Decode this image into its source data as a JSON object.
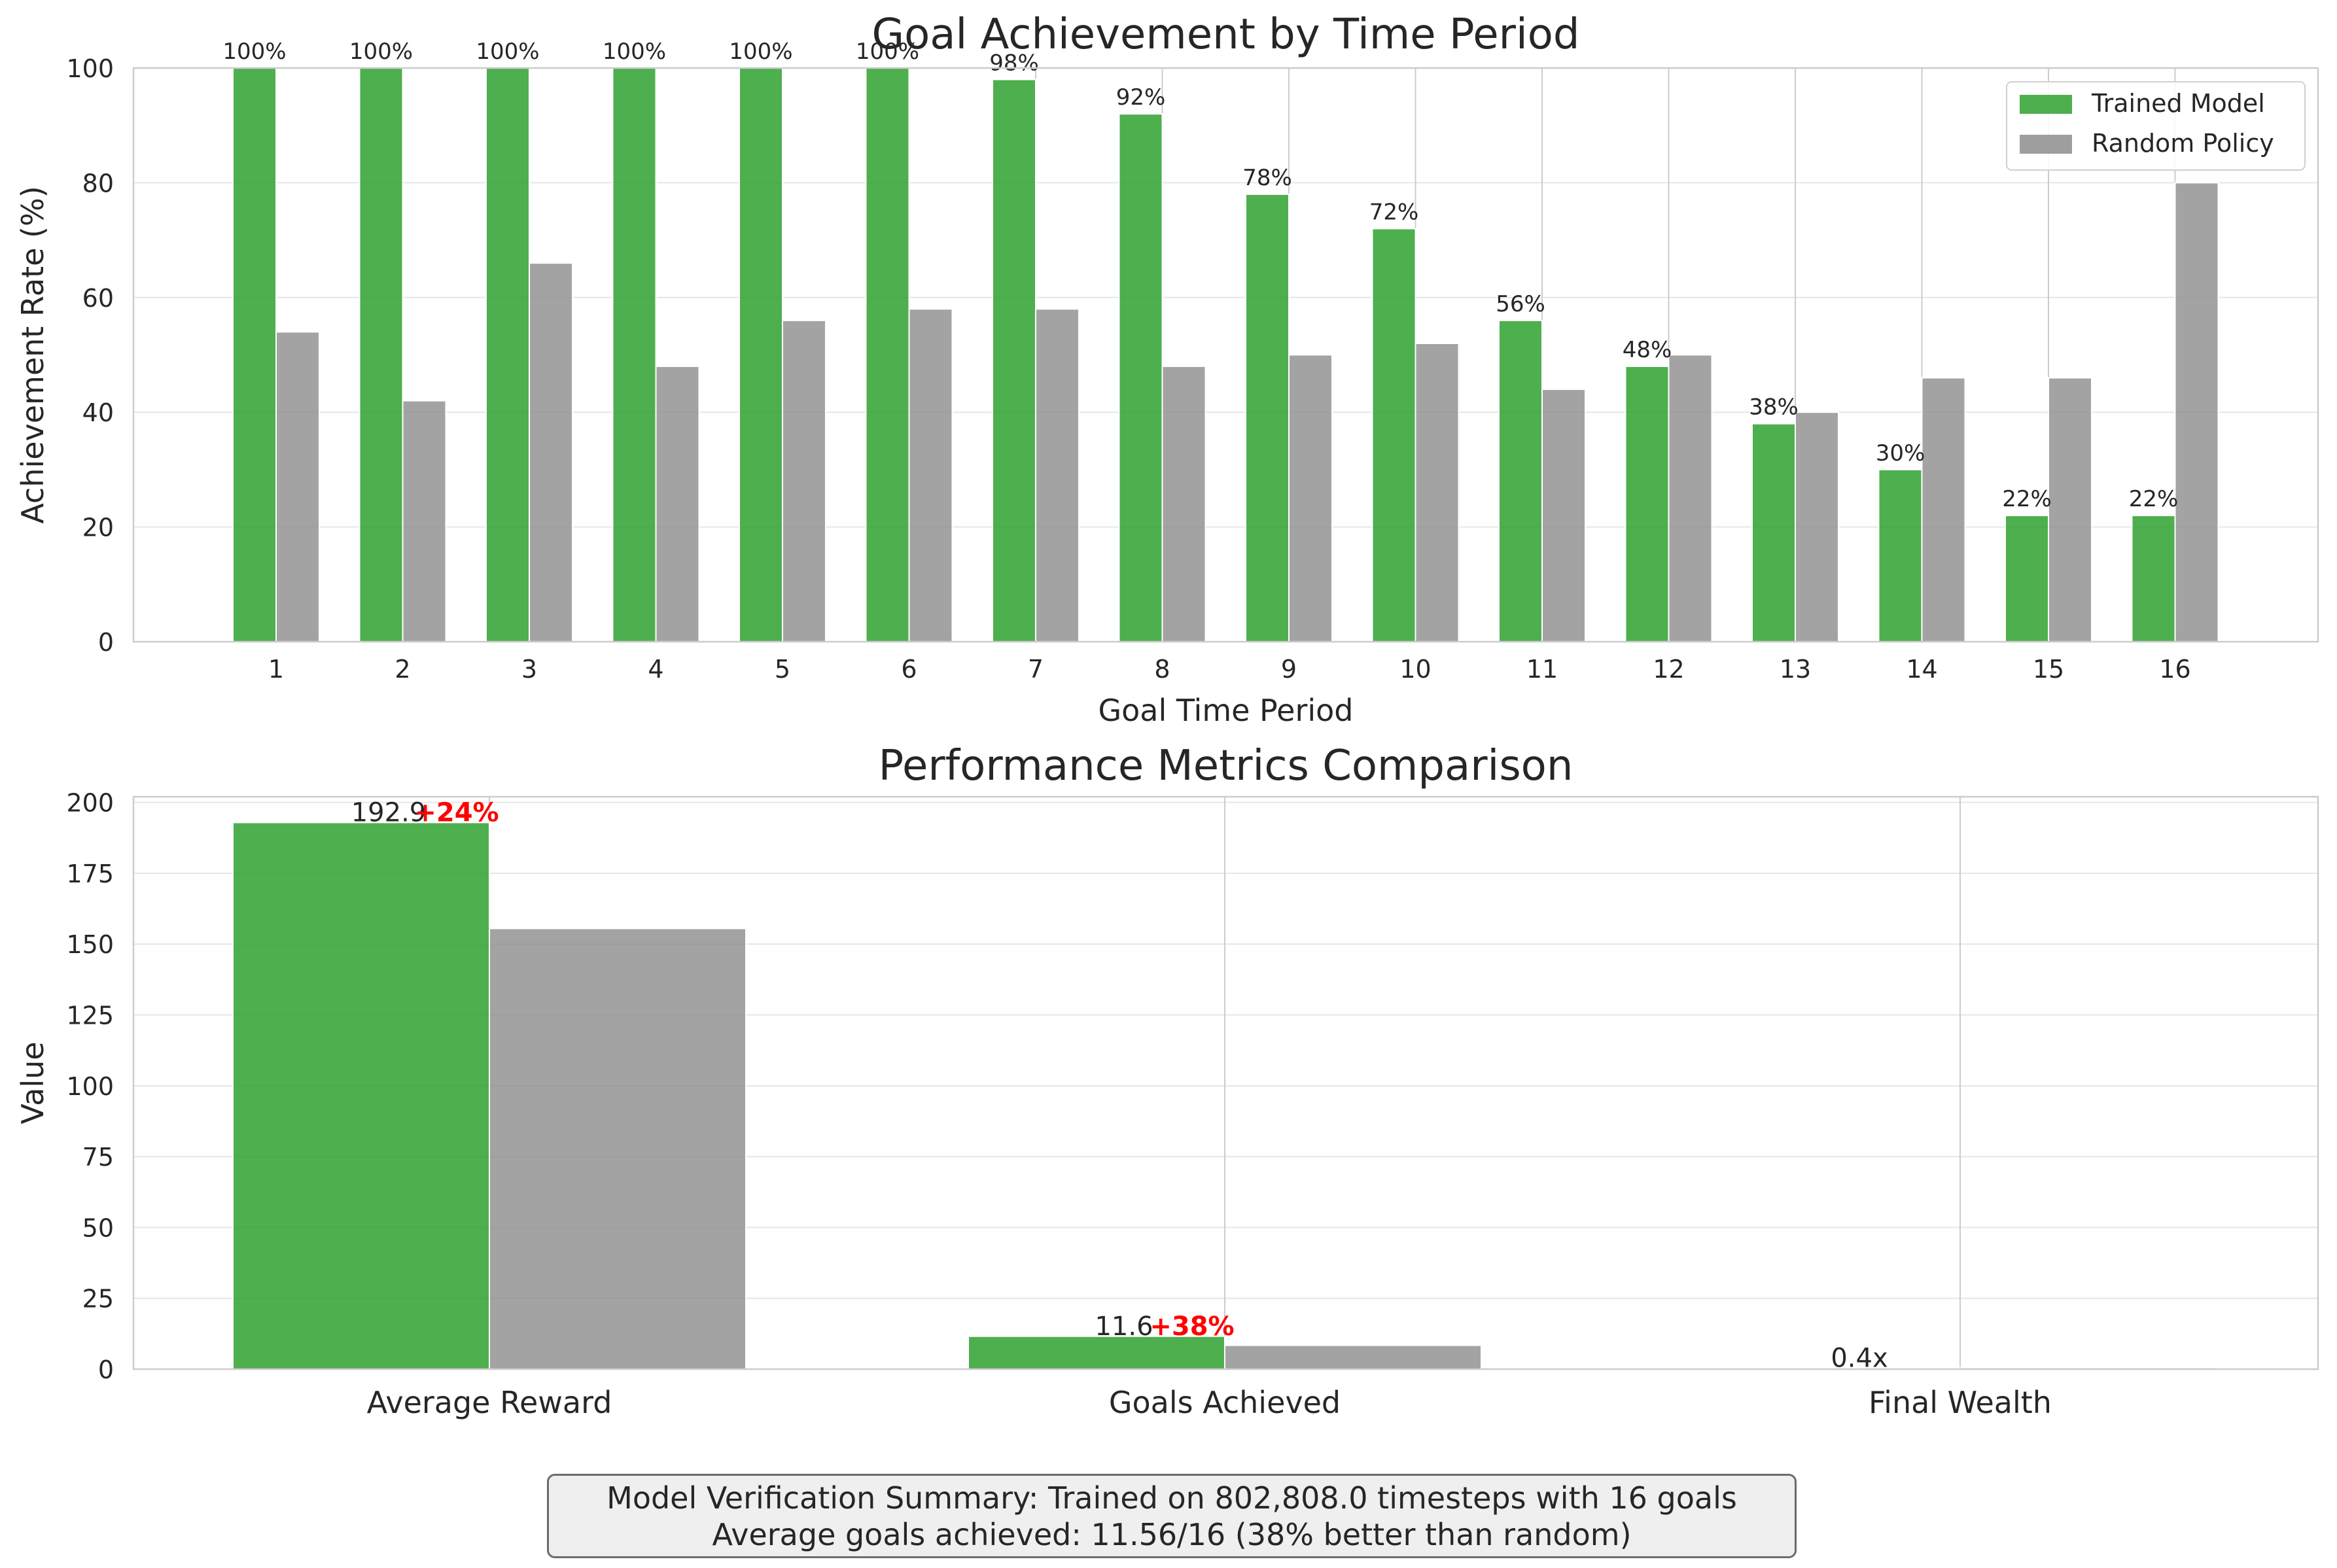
{
  "chart_data": [
    {
      "type": "bar",
      "title": "Goal Achievement by Time Period",
      "xlabel": "Goal Time Period",
      "ylabel": "Achievement Rate (%)",
      "ylim": [
        0,
        100
      ],
      "yticks": [
        0,
        20,
        40,
        60,
        80,
        100
      ],
      "categories": [
        "1",
        "2",
        "3",
        "4",
        "5",
        "6",
        "7",
        "8",
        "9",
        "10",
        "11",
        "12",
        "13",
        "14",
        "15",
        "16"
      ],
      "series": [
        {
          "name": "Trained Model",
          "color": "#2ca02c",
          "values": [
            100,
            100,
            100,
            100,
            100,
            100,
            98,
            92,
            78,
            72,
            56,
            48,
            38,
            30,
            22,
            22
          ],
          "labels": [
            "100%",
            "100%",
            "100%",
            "100%",
            "100%",
            "100%",
            "98%",
            "92%",
            "78%",
            "72%",
            "56%",
            "48%",
            "38%",
            "30%",
            "22%",
            "22%"
          ]
        },
        {
          "name": "Random Policy",
          "color": "#8c8c8c",
          "values": [
            54,
            42,
            66,
            48,
            56,
            58,
            58,
            48,
            50,
            52,
            44,
            50,
            40,
            46,
            46,
            80
          ]
        }
      ],
      "legend": "top-right",
      "grid": true
    },
    {
      "type": "bar",
      "title": "Performance Metrics Comparison",
      "xlabel": "",
      "ylabel": "Value",
      "ylim": [
        0,
        202
      ],
      "yticks": [
        0,
        25,
        50,
        75,
        100,
        125,
        150,
        175,
        200
      ],
      "categories": [
        "Average Reward",
        "Goals Achieved",
        "Final Wealth"
      ],
      "series": [
        {
          "color": "#2ca02c",
          "values": [
            192.9,
            11.6,
            0.4
          ],
          "labels": [
            "192.9",
            "11.6",
            "0.4x"
          ]
        },
        {
          "color": "#8c8c8c",
          "values": [
            155.5,
            8.4,
            0.5
          ]
        }
      ],
      "annotations": [
        "+24%",
        "+38%"
      ],
      "annotation_color": "#ff0000",
      "grid": true
    }
  ],
  "summary": {
    "line1": "Model Verification Summary: Trained on 802,808.0 timesteps with 16 goals",
    "line2": "Average goals achieved: 11.56/16 (38% better than random)"
  }
}
